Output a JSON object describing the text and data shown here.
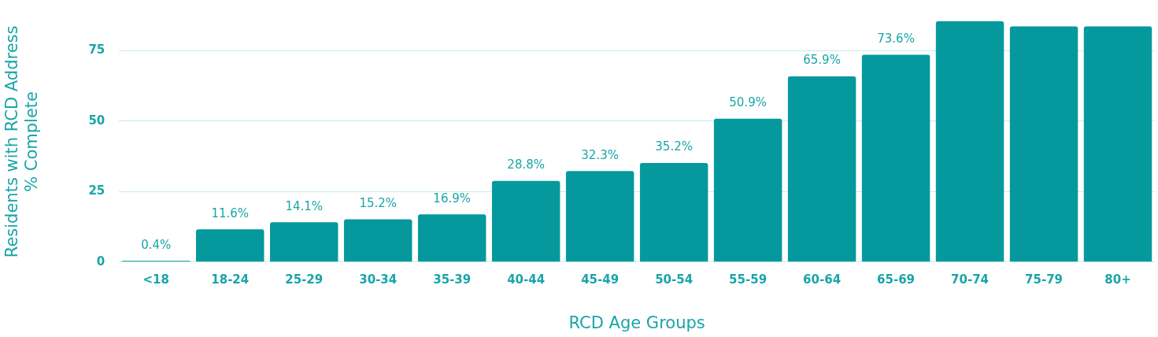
{
  "chart_data": {
    "type": "bar",
    "xlabel": "RCD Age Groups",
    "ylabel": "Residents with RCD Address\n% Complete",
    "categories": [
      "<18",
      "18-24",
      "25-29",
      "30-34",
      "35-39",
      "40-44",
      "45-49",
      "50-54",
      "55-59",
      "60-64",
      "65-69",
      "70-74",
      "75-79",
      "80+"
    ],
    "values": [
      0.4,
      11.6,
      14.1,
      15.2,
      16.9,
      28.8,
      32.3,
      35.2,
      50.9,
      65.9,
      73.6,
      85.5,
      83.7,
      83.7
    ],
    "value_labels": [
      "0.4%",
      "11.6%",
      "14.1%",
      "15.2%",
      "16.9%",
      "28.8%",
      "32.3%",
      "35.2%",
      "50.9%",
      "65.9%",
      "73.6%",
      null,
      null,
      null
    ],
    "color": "#05999d",
    "ylim": [
      0,
      85.5
    ],
    "yticks": [
      0,
      25,
      50,
      75
    ],
    "grid": "y",
    "legend": false
  }
}
